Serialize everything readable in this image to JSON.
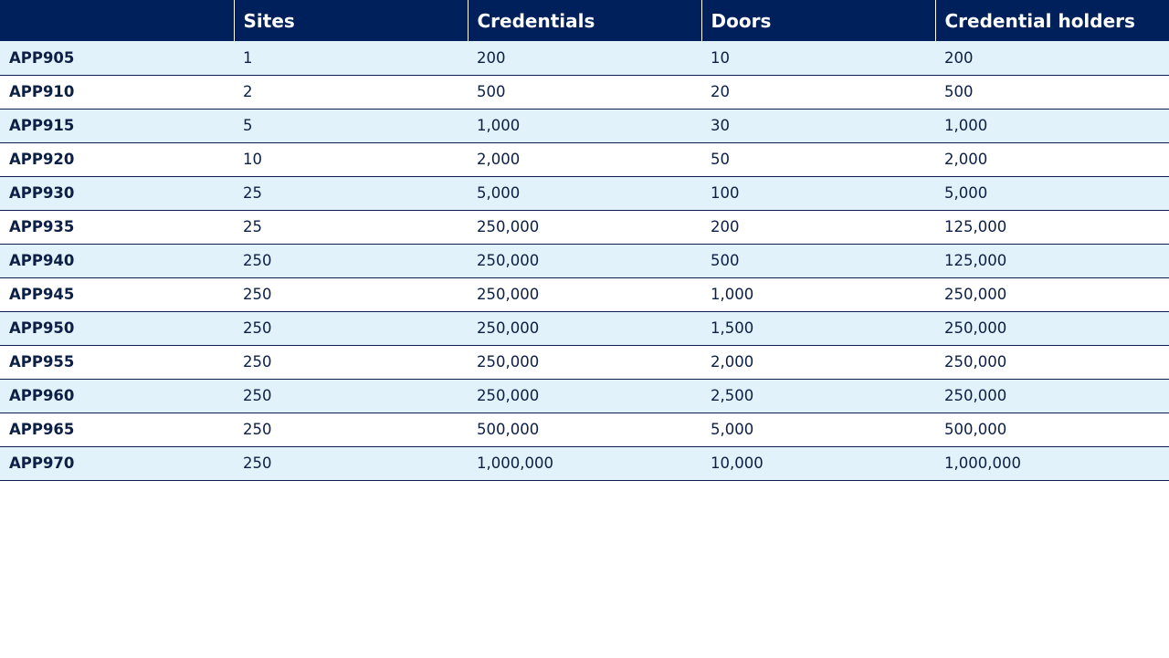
{
  "table": {
    "headers": [
      "",
      "Sites",
      "Credentials",
      "Doors",
      "Credential holders"
    ],
    "rows": [
      [
        "APP905",
        "1",
        "200",
        "10",
        "200"
      ],
      [
        "APP910",
        "2",
        "500",
        "20",
        "500"
      ],
      [
        "APP915",
        "5",
        "1,000",
        "30",
        "1,000"
      ],
      [
        "APP920",
        "10",
        "2,000",
        "50",
        "2,000"
      ],
      [
        "APP930",
        "25",
        "5,000",
        "100",
        "5,000"
      ],
      [
        "APP935",
        "25",
        "250,000",
        "200",
        "125,000"
      ],
      [
        "APP940",
        "250",
        "250,000",
        "500",
        "125,000"
      ],
      [
        "APP945",
        "250",
        "250,000",
        "1,000",
        "250,000"
      ],
      [
        "APP950",
        "250",
        "250,000",
        "1,500",
        "250,000"
      ],
      [
        "APP955",
        "250",
        "250,000",
        "2,000",
        "250,000"
      ],
      [
        "APP960",
        "250",
        "250,000",
        "2,500",
        "250,000"
      ],
      [
        "APP965",
        "250",
        "500,000",
        "5,000",
        "500,000"
      ],
      [
        "APP970",
        "250",
        "1,000,000",
        "10,000",
        "1,000,000"
      ]
    ]
  },
  "colors": {
    "header_bg": "#00205b",
    "header_text": "#ffffff",
    "row_shaded": "#e2f2fa",
    "row_plain": "#ffffff",
    "row_border": "#0a1f4d",
    "text": "#0c1f45"
  }
}
